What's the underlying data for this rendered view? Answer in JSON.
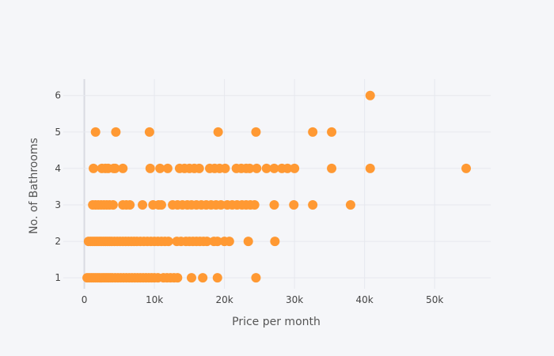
{
  "chart_data": {
    "type": "scatter",
    "xlabel": "Price per month",
    "ylabel": "No. of Bathrooms",
    "xlim": [
      -3000,
      58000
    ],
    "ylim": [
      0.7,
      6.45
    ],
    "grid": true,
    "colors": {
      "marker": "#ff9933",
      "background": "#f5f6f9",
      "grid": "#e6e8ee",
      "zeroline": "#d9dbe2"
    },
    "x_ticks": [
      {
        "value": 0,
        "label": "0"
      },
      {
        "value": 10000,
        "label": "10k"
      },
      {
        "value": 20000,
        "label": "20k"
      },
      {
        "value": 30000,
        "label": "30k"
      },
      {
        "value": 40000,
        "label": "40k"
      },
      {
        "value": 50000,
        "label": "50k"
      }
    ],
    "y_ticks": [
      {
        "value": 1,
        "label": "1"
      },
      {
        "value": 2,
        "label": "2"
      },
      {
        "value": 3,
        "label": "3"
      },
      {
        "value": 4,
        "label": "4"
      },
      {
        "value": 5,
        "label": "5"
      },
      {
        "value": 6,
        "label": "6"
      }
    ],
    "points": [
      {
        "x": 400,
        "y": 1
      },
      {
        "x": 700,
        "y": 1
      },
      {
        "x": 1000,
        "y": 1
      },
      {
        "x": 1300,
        "y": 1
      },
      {
        "x": 1600,
        "y": 1
      },
      {
        "x": 1900,
        "y": 1
      },
      {
        "x": 2200,
        "y": 1
      },
      {
        "x": 2500,
        "y": 1
      },
      {
        "x": 2800,
        "y": 1
      },
      {
        "x": 3100,
        "y": 1
      },
      {
        "x": 3400,
        "y": 1
      },
      {
        "x": 3700,
        "y": 1
      },
      {
        "x": 4000,
        "y": 1
      },
      {
        "x": 4400,
        "y": 1
      },
      {
        "x": 4800,
        "y": 1
      },
      {
        "x": 5200,
        "y": 1
      },
      {
        "x": 5600,
        "y": 1
      },
      {
        "x": 6000,
        "y": 1
      },
      {
        "x": 6400,
        "y": 1
      },
      {
        "x": 6800,
        "y": 1
      },
      {
        "x": 7200,
        "y": 1
      },
      {
        "x": 7600,
        "y": 1
      },
      {
        "x": 8000,
        "y": 1
      },
      {
        "x": 8400,
        "y": 1
      },
      {
        "x": 8800,
        "y": 1
      },
      {
        "x": 9200,
        "y": 1
      },
      {
        "x": 9600,
        "y": 1
      },
      {
        "x": 10000,
        "y": 1
      },
      {
        "x": 10500,
        "y": 1
      },
      {
        "x": 11300,
        "y": 1
      },
      {
        "x": 11800,
        "y": 1
      },
      {
        "x": 12300,
        "y": 1
      },
      {
        "x": 12800,
        "y": 1
      },
      {
        "x": 13300,
        "y": 1
      },
      {
        "x": 15300,
        "y": 1
      },
      {
        "x": 16900,
        "y": 1
      },
      {
        "x": 19000,
        "y": 1
      },
      {
        "x": 24500,
        "y": 1
      },
      {
        "x": 600,
        "y": 2
      },
      {
        "x": 900,
        "y": 2
      },
      {
        "x": 1200,
        "y": 2
      },
      {
        "x": 1500,
        "y": 2
      },
      {
        "x": 1800,
        "y": 2
      },
      {
        "x": 2100,
        "y": 2
      },
      {
        "x": 2400,
        "y": 2
      },
      {
        "x": 2700,
        "y": 2
      },
      {
        "x": 3000,
        "y": 2
      },
      {
        "x": 3300,
        "y": 2
      },
      {
        "x": 3600,
        "y": 2
      },
      {
        "x": 3900,
        "y": 2
      },
      {
        "x": 4300,
        "y": 2
      },
      {
        "x": 4700,
        "y": 2
      },
      {
        "x": 5100,
        "y": 2
      },
      {
        "x": 5500,
        "y": 2
      },
      {
        "x": 5900,
        "y": 2
      },
      {
        "x": 6300,
        "y": 2
      },
      {
        "x": 6700,
        "y": 2
      },
      {
        "x": 7100,
        "y": 2
      },
      {
        "x": 7500,
        "y": 2
      },
      {
        "x": 8000,
        "y": 2
      },
      {
        "x": 8500,
        "y": 2
      },
      {
        "x": 9000,
        "y": 2
      },
      {
        "x": 9500,
        "y": 2
      },
      {
        "x": 10000,
        "y": 2
      },
      {
        "x": 10500,
        "y": 2
      },
      {
        "x": 11000,
        "y": 2
      },
      {
        "x": 11500,
        "y": 2
      },
      {
        "x": 12000,
        "y": 2
      },
      {
        "x": 13200,
        "y": 2
      },
      {
        "x": 13800,
        "y": 2
      },
      {
        "x": 14500,
        "y": 2
      },
      {
        "x": 15000,
        "y": 2
      },
      {
        "x": 15500,
        "y": 2
      },
      {
        "x": 16000,
        "y": 2
      },
      {
        "x": 16500,
        "y": 2
      },
      {
        "x": 17000,
        "y": 2
      },
      {
        "x": 17500,
        "y": 2
      },
      {
        "x": 18500,
        "y": 2
      },
      {
        "x": 19000,
        "y": 2
      },
      {
        "x": 20000,
        "y": 2
      },
      {
        "x": 20700,
        "y": 2
      },
      {
        "x": 23400,
        "y": 2
      },
      {
        "x": 27200,
        "y": 2
      },
      {
        "x": 1200,
        "y": 3
      },
      {
        "x": 1600,
        "y": 3
      },
      {
        "x": 2000,
        "y": 3
      },
      {
        "x": 2400,
        "y": 3
      },
      {
        "x": 2800,
        "y": 3
      },
      {
        "x": 3200,
        "y": 3
      },
      {
        "x": 3600,
        "y": 3
      },
      {
        "x": 4100,
        "y": 3
      },
      {
        "x": 5500,
        "y": 3
      },
      {
        "x": 6000,
        "y": 3
      },
      {
        "x": 6500,
        "y": 3
      },
      {
        "x": 8300,
        "y": 3
      },
      {
        "x": 9800,
        "y": 3
      },
      {
        "x": 10600,
        "y": 3
      },
      {
        "x": 11000,
        "y": 3
      },
      {
        "x": 12600,
        "y": 3
      },
      {
        "x": 13300,
        "y": 3
      },
      {
        "x": 14000,
        "y": 3
      },
      {
        "x": 14700,
        "y": 3
      },
      {
        "x": 15300,
        "y": 3
      },
      {
        "x": 16000,
        "y": 3
      },
      {
        "x": 16700,
        "y": 3
      },
      {
        "x": 17400,
        "y": 3
      },
      {
        "x": 18100,
        "y": 3
      },
      {
        "x": 18800,
        "y": 3
      },
      {
        "x": 19500,
        "y": 3
      },
      {
        "x": 20400,
        "y": 3
      },
      {
        "x": 21100,
        "y": 3
      },
      {
        "x": 21800,
        "y": 3
      },
      {
        "x": 22500,
        "y": 3
      },
      {
        "x": 23100,
        "y": 3
      },
      {
        "x": 23700,
        "y": 3
      },
      {
        "x": 24300,
        "y": 3
      },
      {
        "x": 27100,
        "y": 3
      },
      {
        "x": 29900,
        "y": 3
      },
      {
        "x": 32600,
        "y": 3
      },
      {
        "x": 38000,
        "y": 3
      },
      {
        "x": 1300,
        "y": 4
      },
      {
        "x": 2500,
        "y": 4
      },
      {
        "x": 3000,
        "y": 4
      },
      {
        "x": 3400,
        "y": 4
      },
      {
        "x": 4200,
        "y": 4
      },
      {
        "x": 4400,
        "y": 4
      },
      {
        "x": 5500,
        "y": 4
      },
      {
        "x": 9400,
        "y": 4
      },
      {
        "x": 10800,
        "y": 4
      },
      {
        "x": 11900,
        "y": 4
      },
      {
        "x": 13600,
        "y": 4
      },
      {
        "x": 14300,
        "y": 4
      },
      {
        "x": 15000,
        "y": 4
      },
      {
        "x": 15700,
        "y": 4
      },
      {
        "x": 16400,
        "y": 4
      },
      {
        "x": 17900,
        "y": 4
      },
      {
        "x": 18600,
        "y": 4
      },
      {
        "x": 19300,
        "y": 4
      },
      {
        "x": 20100,
        "y": 4
      },
      {
        "x": 21700,
        "y": 4
      },
      {
        "x": 22400,
        "y": 4
      },
      {
        "x": 23100,
        "y": 4
      },
      {
        "x": 23600,
        "y": 4
      },
      {
        "x": 24600,
        "y": 4
      },
      {
        "x": 26000,
        "y": 4
      },
      {
        "x": 27100,
        "y": 4
      },
      {
        "x": 28200,
        "y": 4
      },
      {
        "x": 29000,
        "y": 4
      },
      {
        "x": 30000,
        "y": 4
      },
      {
        "x": 35300,
        "y": 4
      },
      {
        "x": 40800,
        "y": 4
      },
      {
        "x": 54500,
        "y": 4
      },
      {
        "x": 1600,
        "y": 5
      },
      {
        "x": 4500,
        "y": 5
      },
      {
        "x": 9300,
        "y": 5
      },
      {
        "x": 19100,
        "y": 5
      },
      {
        "x": 24500,
        "y": 5
      },
      {
        "x": 32600,
        "y": 5
      },
      {
        "x": 35300,
        "y": 5
      },
      {
        "x": 40800,
        "y": 6
      }
    ]
  }
}
